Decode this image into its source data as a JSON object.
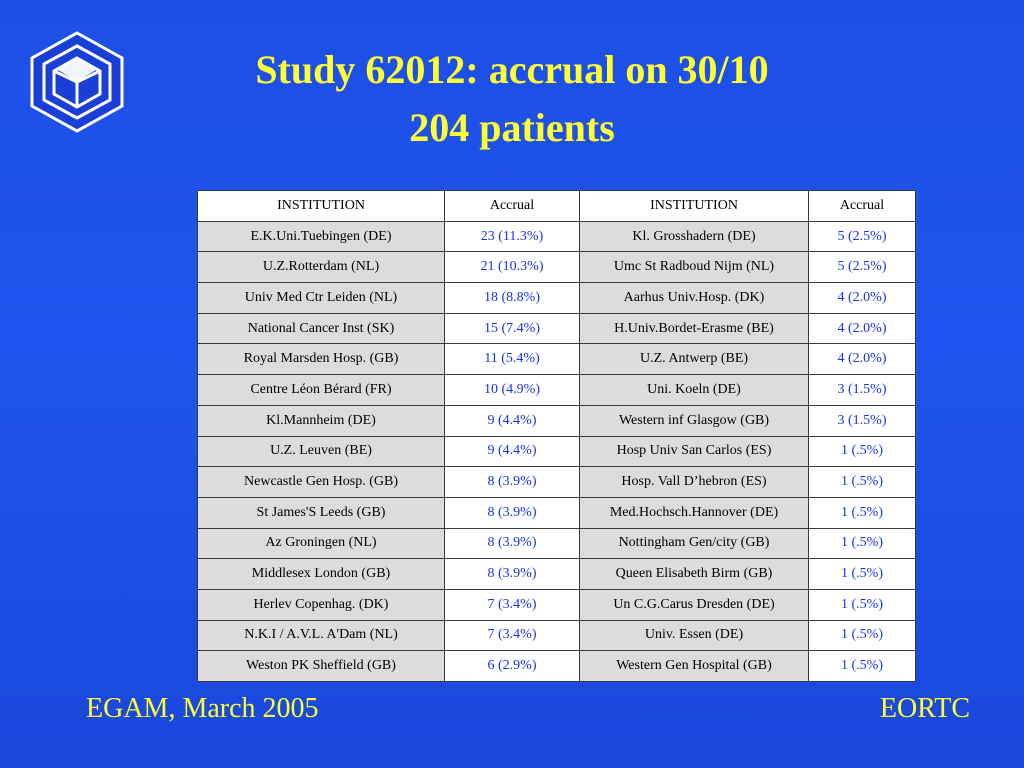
{
  "title": {
    "line1": "Study 62012: accrual on 30/10",
    "line2": "204 patients"
  },
  "table": {
    "headers": [
      "INSTITUTION",
      "Accrual",
      "INSTITUTION",
      "Accrual"
    ],
    "rows": [
      [
        "E.K.Uni.Tuebingen (DE)",
        "23 (11.3%)",
        "Kl. Grosshadern (DE)",
        "5 (2.5%)"
      ],
      [
        "U.Z.Rotterdam (NL)",
        "21 (10.3%)",
        "Umc St Radboud Nijm (NL)",
        "5 (2.5%)"
      ],
      [
        "Univ Med Ctr Leiden (NL)",
        "18 (8.8%)",
        "Aarhus Univ.Hosp. (DK)",
        "4 (2.0%)"
      ],
      [
        "National Cancer Inst (SK)",
        "15 (7.4%)",
        "H.Univ.Bordet-Erasme (BE)",
        "4 (2.0%)"
      ],
      [
        "Royal Marsden Hosp. (GB)",
        "11 (5.4%)",
        "U.Z. Antwerp (BE)",
        "4 (2.0%)"
      ],
      [
        "Centre Léon Bérard (FR)",
        "10 (4.9%)",
        "Uni. Koeln (DE)",
        "3 (1.5%)"
      ],
      [
        "Kl.Mannheim (DE)",
        "9 (4.4%)",
        "Western inf Glasgow (GB)",
        "3 (1.5%)"
      ],
      [
        "U.Z. Leuven (BE)",
        "9 (4.4%)",
        "Hosp Univ San Carlos (ES)",
        "1 (.5%)"
      ],
      [
        "Newcastle Gen Hosp. (GB)",
        "8 (3.9%)",
        "Hosp. Vall D’hebron (ES)",
        "1 (.5%)"
      ],
      [
        "St James'S Leeds (GB)",
        "8 (3.9%)",
        "Med.Hochsch.Hannover (DE)",
        "1 (.5%)"
      ],
      [
        "Az Groningen (NL)",
        "8 (3.9%)",
        "Nottingham Gen/city (GB)",
        "1 (.5%)"
      ],
      [
        "Middlesex London (GB)",
        "8 (3.9%)",
        "Queen Elisabeth Birm (GB)",
        "1 (.5%)"
      ],
      [
        "Herlev Copenhag. (DK)",
        "7 (3.4%)",
        "Un C.G.Carus Dresden (DE)",
        "1 (.5%)"
      ],
      [
        "N.K.I / A.V.L. A'Dam (NL)",
        "7 (3.4%)",
        "Univ. Essen (DE)",
        "1 (.5%)"
      ],
      [
        "Weston PK Sheffield (GB)",
        "6 (2.9%)",
        "Western Gen Hospital (GB)",
        "1 (.5%)"
      ]
    ]
  },
  "footer": {
    "left": "EGAM, March 2005",
    "right": "EORTC"
  },
  "colors": {
    "background": "#1f55ee",
    "title_text": "#ffff33",
    "accrual_text": "#1733ee",
    "institution_cell": "#dcdcdc"
  },
  "logo": {
    "icon": "eortc-logo-icon"
  }
}
